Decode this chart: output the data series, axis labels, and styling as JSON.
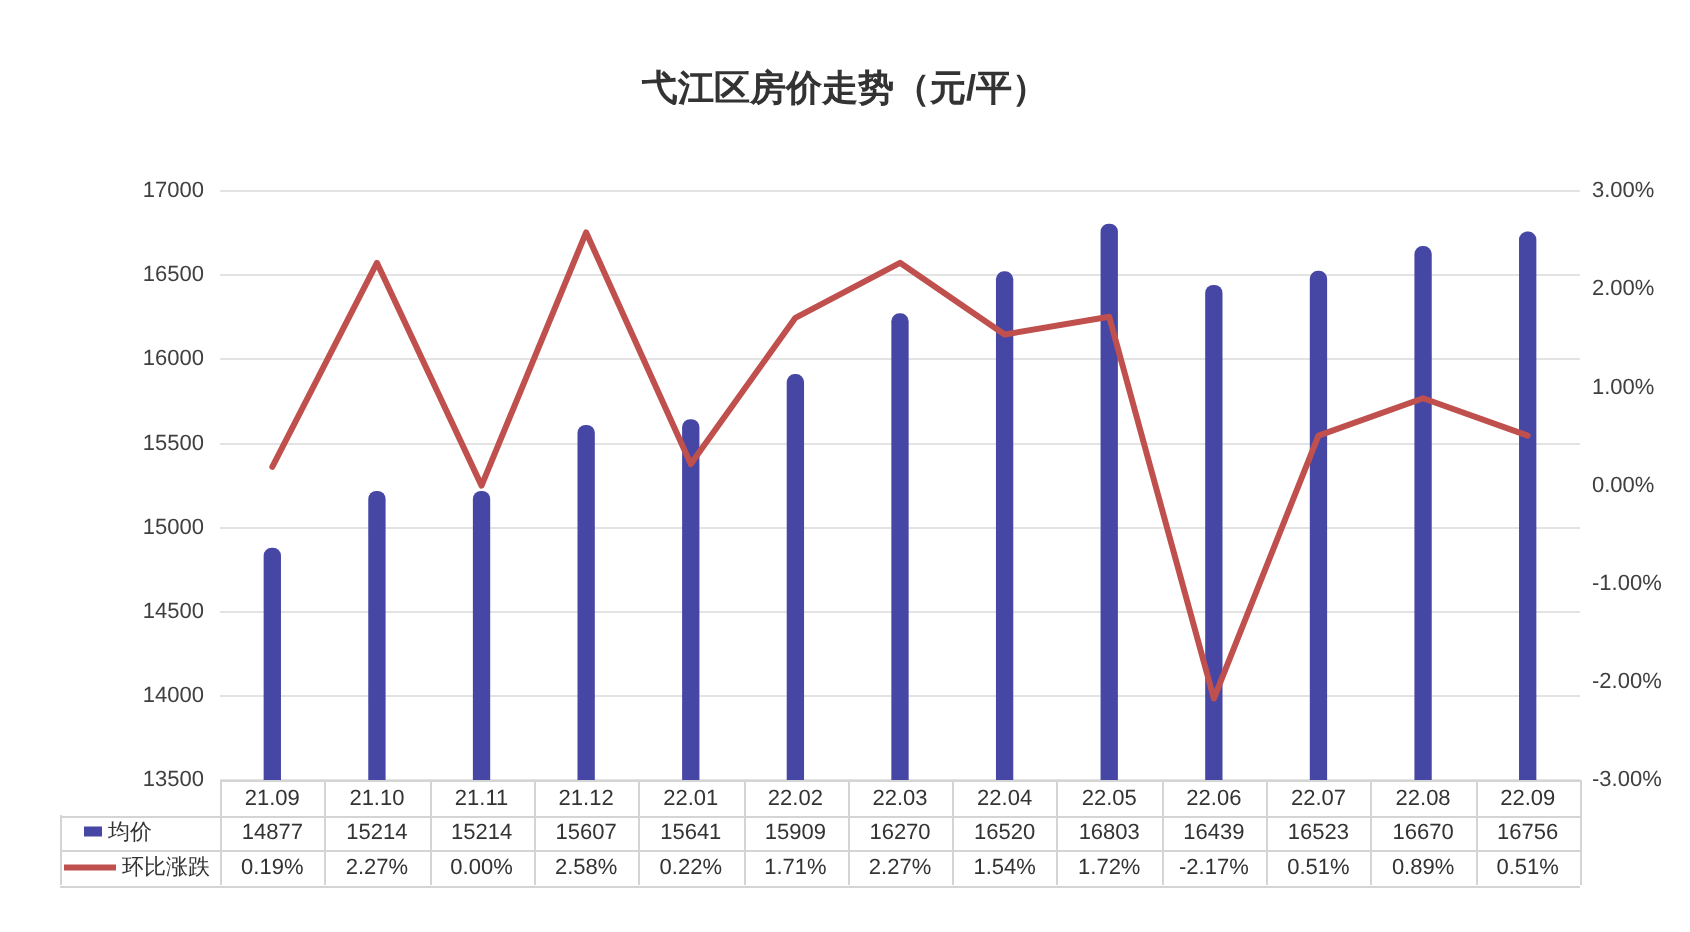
{
  "chart_data": {
    "type": "bar",
    "title": "弋江区房价走势（元/平）",
    "categories": [
      "21.09",
      "21.10",
      "21.11",
      "21.12",
      "22.01",
      "22.02",
      "22.03",
      "22.04",
      "22.05",
      "22.06",
      "22.07",
      "22.08",
      "22.09"
    ],
    "series": [
      {
        "name": "均价",
        "color": "#4646a4",
        "values": [
          14877,
          15214,
          15214,
          15607,
          15641,
          15909,
          16270,
          16520,
          16803,
          16439,
          16523,
          16670,
          16756
        ],
        "value_labels": [
          "14877",
          "15214",
          "15214",
          "15607",
          "15641",
          "15909",
          "16270",
          "16520",
          "16803",
          "16439",
          "16523",
          "16670",
          "16756"
        ]
      },
      {
        "name": "环比涨跌",
        "type": "line",
        "axis": "y2",
        "color": "#c0504d",
        "values": [
          0.19,
          2.27,
          0.0,
          2.58,
          0.22,
          1.71,
          2.27,
          1.54,
          1.72,
          -2.17,
          0.51,
          0.89,
          0.51
        ],
        "value_labels": [
          "0.19%",
          "2.27%",
          "0.00%",
          "2.58%",
          "0.22%",
          "1.71%",
          "2.27%",
          "1.54%",
          "1.72%",
          "-2.17%",
          "0.51%",
          "0.89%",
          "0.51%"
        ]
      }
    ],
    "ylim": [
      13500,
      17000
    ],
    "yticks": [
      13500,
      14000,
      14500,
      15000,
      15500,
      16000,
      16500,
      17000
    ],
    "y2lim": [
      -3,
      3
    ],
    "y2ticks": [
      {
        "value": -3,
        "label": "-3.00%"
      },
      {
        "value": -2,
        "label": "-2.00%"
      },
      {
        "value": -1,
        "label": "-1.00%"
      },
      {
        "value": 0,
        "label": "0.00%"
      },
      {
        "value": 1,
        "label": "1.00%"
      },
      {
        "value": 2,
        "label": "2.00%"
      },
      {
        "value": 3,
        "label": "3.00%"
      }
    ],
    "grid": "y",
    "legend": "bottom left",
    "marker": "none",
    "line_style": "solid"
  }
}
